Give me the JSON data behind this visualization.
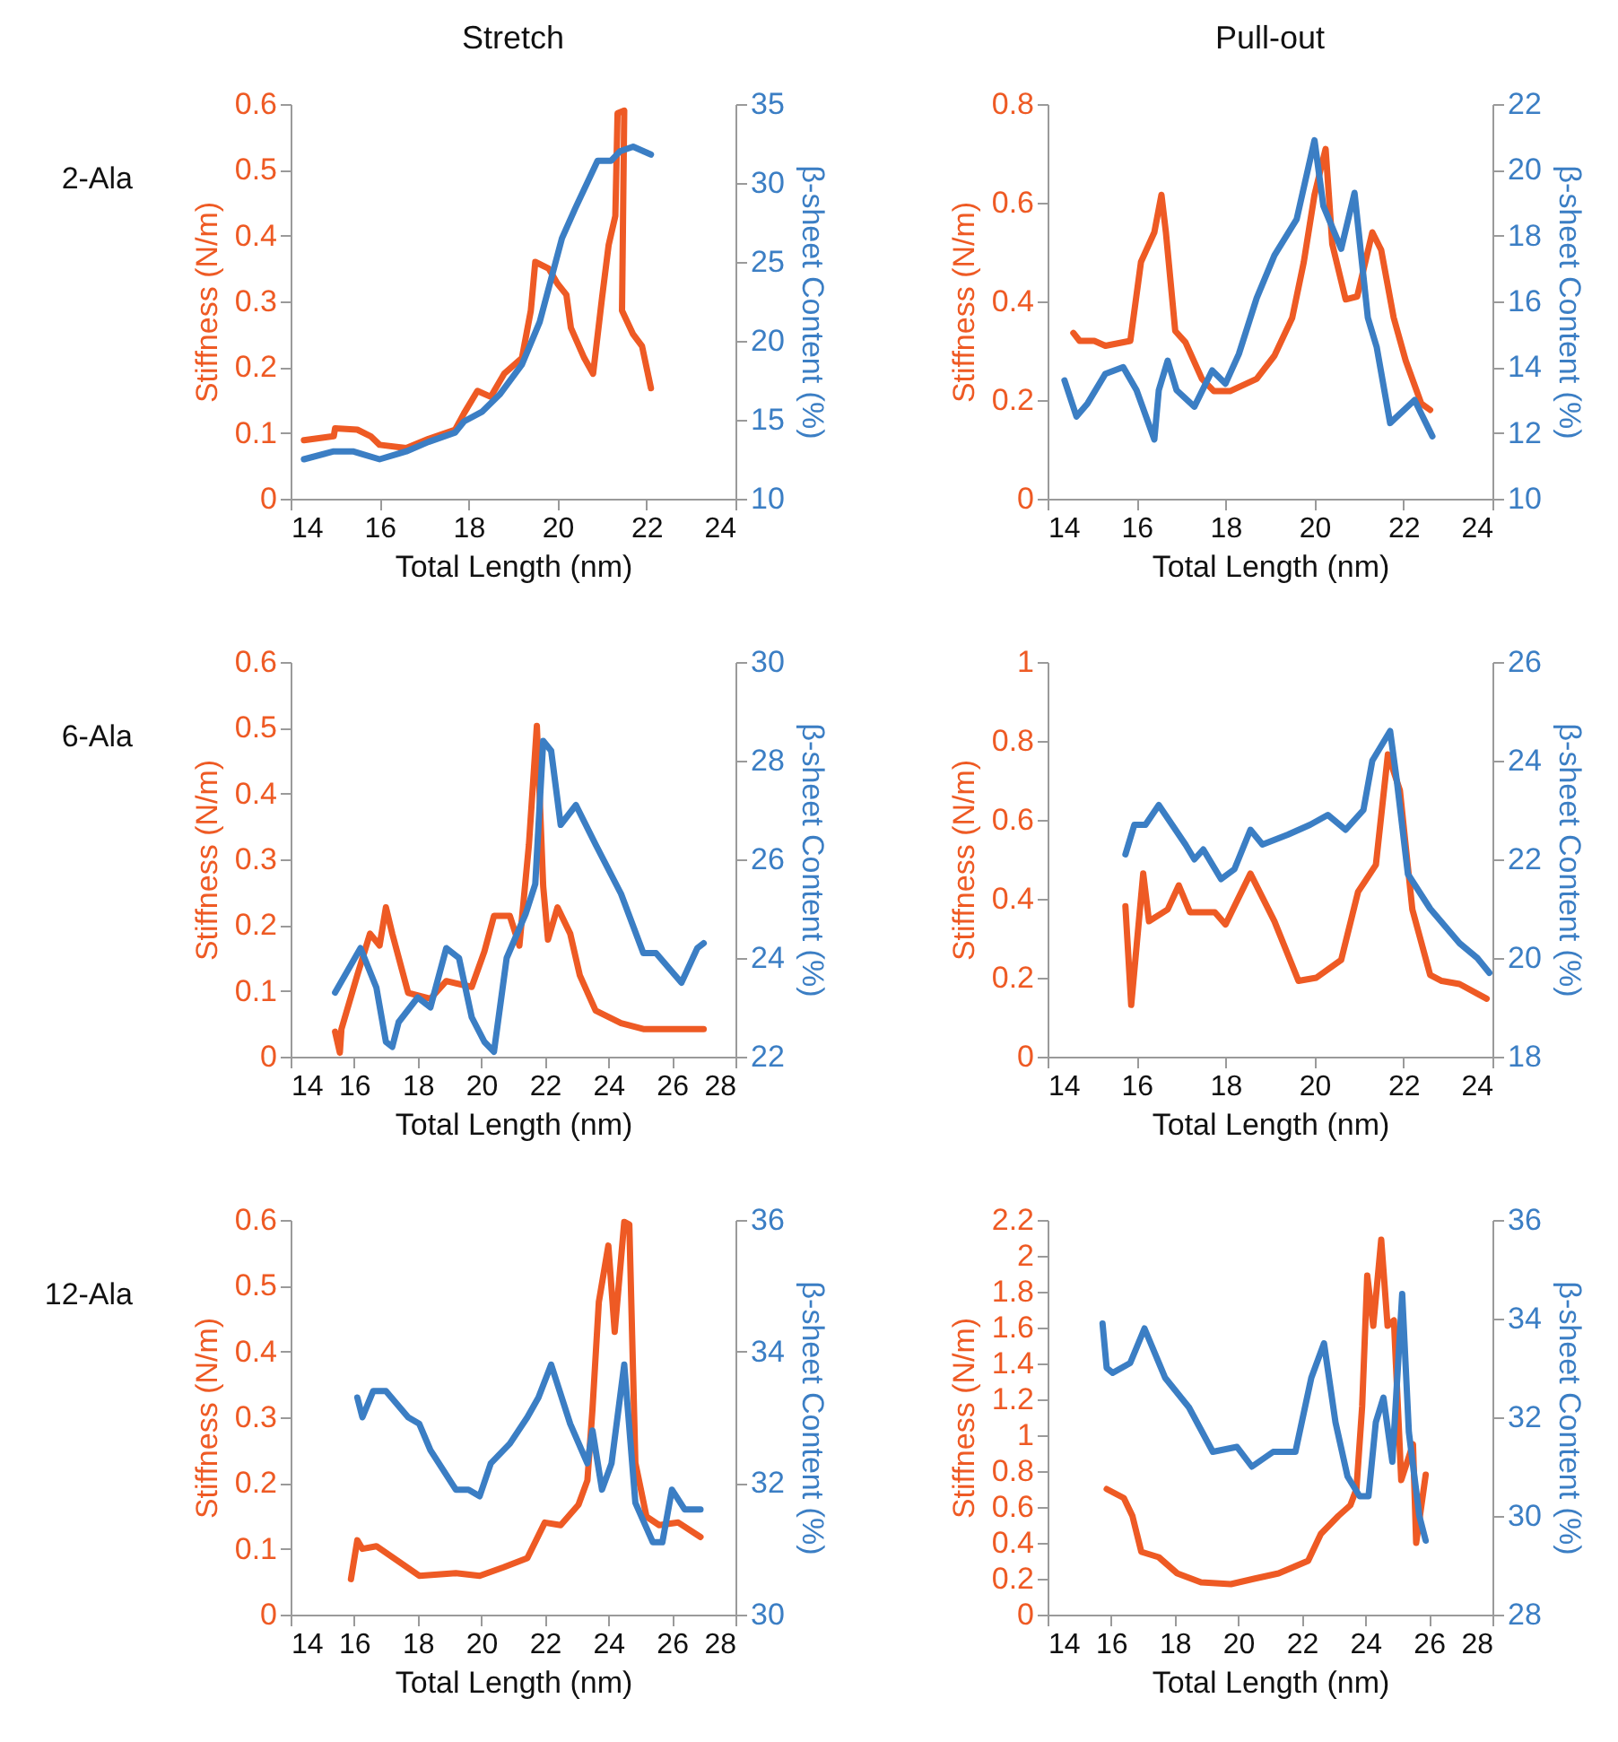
{
  "chart_data": [
    {
      "type": "line",
      "title": "Stretch",
      "annotations": [
        "2-Ala"
      ],
      "xlabel": "Total Length (nm)",
      "ylabel": "Stiffness (N/m)",
      "y2label": "β-sheet Content (%)",
      "xlim": [
        14,
        24
      ],
      "xticks": [
        14,
        16,
        18,
        20,
        22,
        24
      ],
      "ylim": [
        0,
        0.6
      ],
      "yticks": [
        0,
        0.1,
        0.2,
        0.3,
        0.4,
        0.5,
        0.6
      ],
      "y2lim": [
        10,
        35
      ],
      "y2ticks": [
        10,
        15,
        20,
        25,
        30,
        35
      ],
      "series": [
        {
          "color": "#ee5a24",
          "x": [
            14.3,
            14.97,
            15.0,
            15.5,
            15.8,
            16.0,
            16.6,
            17.1,
            17.7,
            17.9,
            18.2,
            18.5,
            18.8,
            19.2,
            19.4,
            19.5,
            19.8,
            20.0,
            20.2,
            20.3,
            20.6,
            20.8,
            21.0,
            21.15,
            21.3,
            21.35,
            21.5,
            21.45,
            21.7,
            21.9,
            22.1
          ],
          "values": [
            0.089,
            0.095,
            0.107,
            0.105,
            0.095,
            0.082,
            0.077,
            0.091,
            0.105,
            0.13,
            0.164,
            0.155,
            0.19,
            0.214,
            0.286,
            0.36,
            0.35,
            0.327,
            0.31,
            0.26,
            0.214,
            0.19,
            0.305,
            0.386,
            0.43,
            0.586,
            0.59,
            0.286,
            0.25,
            0.232,
            0.168
          ]
        },
        {
          "color": "#3b7ec4",
          "axis": "y2",
          "x": [
            14.3,
            14.97,
            15.4,
            16.0,
            16.6,
            17.1,
            17.7,
            17.9,
            18.3,
            18.7,
            19.2,
            19.6,
            20.1,
            20.4,
            20.9,
            21.2,
            21.4,
            21.7,
            22.1
          ],
          "values": [
            12.5,
            13.0,
            13.0,
            12.5,
            13.0,
            13.6,
            14.2,
            14.9,
            15.5,
            16.6,
            18.5,
            21.2,
            26.5,
            28.4,
            31.4,
            31.4,
            32.0,
            32.3,
            31.8
          ]
        }
      ]
    },
    {
      "type": "line",
      "title": "Pull-out",
      "xlabel": "Total Length (nm)",
      "ylabel": "Stiffness (N/m)",
      "y2label": "β-sheet Content (%)",
      "xlim": [
        14,
        24
      ],
      "xticks": [
        14,
        16,
        18,
        20,
        22,
        24
      ],
      "ylim": [
        0,
        0.8
      ],
      "yticks": [
        0,
        0.2,
        0.4,
        0.6,
        0.8
      ],
      "y2lim": [
        10,
        22
      ],
      "y2ticks": [
        10,
        12,
        14,
        16,
        18,
        20,
        22
      ],
      "series": [
        {
          "color": "#ee5a24",
          "x": [
            14.58,
            14.72,
            15.05,
            15.3,
            15.86,
            16.1,
            16.4,
            16.56,
            16.66,
            16.87,
            17.1,
            17.47,
            17.74,
            18.1,
            18.7,
            19.1,
            19.5,
            19.76,
            20.0,
            20.25,
            20.4,
            20.7,
            20.96,
            21.3,
            21.5,
            21.78,
            22.05,
            22.4,
            22.6
          ],
          "values": [
            0.336,
            0.32,
            0.32,
            0.31,
            0.32,
            0.48,
            0.54,
            0.616,
            0.54,
            0.34,
            0.317,
            0.243,
            0.218,
            0.218,
            0.243,
            0.29,
            0.367,
            0.48,
            0.616,
            0.709,
            0.516,
            0.404,
            0.41,
            0.54,
            0.504,
            0.367,
            0.28,
            0.193,
            0.18
          ]
        },
        {
          "color": "#3b7ec4",
          "axis": "y2",
          "x": [
            14.38,
            14.65,
            14.9,
            15.3,
            15.7,
            16.0,
            16.4,
            16.5,
            16.7,
            16.9,
            17.3,
            17.7,
            18.0,
            18.3,
            18.7,
            19.1,
            19.6,
            20.0,
            20.2,
            20.6,
            20.9,
            21.2,
            21.4,
            21.7,
            22.25,
            22.65
          ],
          "values": [
            13.6,
            12.5,
            12.9,
            13.8,
            14.0,
            13.3,
            11.8,
            13.3,
            14.2,
            13.3,
            12.8,
            13.9,
            13.5,
            14.4,
            16.1,
            17.4,
            18.5,
            20.9,
            18.9,
            17.6,
            19.3,
            15.5,
            14.6,
            12.3,
            13.0,
            11.9
          ]
        }
      ]
    },
    {
      "type": "line",
      "annotations": [
        "6-Ala"
      ],
      "xlabel": "Total Length (nm)",
      "ylabel": "Stiffness (N/m)",
      "y2label": "β-sheet Content (%)",
      "xlim": [
        14,
        28
      ],
      "xticks": [
        14,
        16,
        18,
        20,
        22,
        24,
        26,
        28
      ],
      "ylim": [
        0,
        0.6
      ],
      "yticks": [
        0,
        0.1,
        0.2,
        0.3,
        0.4,
        0.5,
        0.6
      ],
      "y2lim": [
        22,
        30
      ],
      "y2ticks": [
        22,
        24,
        26,
        28,
        30
      ],
      "series": [
        {
          "color": "#ee5a24",
          "x": [
            15.4,
            15.55,
            15.6,
            16.1,
            16.5,
            16.8,
            17.0,
            17.2,
            17.7,
            18.4,
            18.9,
            19.7,
            20.1,
            20.4,
            20.9,
            21.2,
            21.5,
            21.75,
            21.95,
            22.1,
            22.4,
            22.8,
            23.1,
            23.6,
            24.4,
            25.1,
            27.0
          ],
          "values": [
            0.038,
            0.006,
            0.042,
            0.124,
            0.187,
            0.169,
            0.227,
            0.187,
            0.097,
            0.088,
            0.115,
            0.106,
            0.16,
            0.214,
            0.214,
            0.169,
            0.322,
            0.503,
            0.259,
            0.178,
            0.227,
            0.187,
            0.124,
            0.07,
            0.051,
            0.042,
            0.042
          ]
        },
        {
          "color": "#3b7ec4",
          "axis": "y2",
          "x": [
            15.4,
            16.2,
            16.7,
            17.0,
            17.2,
            17.4,
            18.0,
            18.4,
            18.9,
            19.3,
            19.7,
            20.1,
            20.4,
            20.8,
            21.4,
            21.7,
            21.95,
            22.2,
            22.5,
            22.98,
            23.6,
            24.4,
            25.1,
            25.5,
            26.3,
            26.8,
            27.0
          ],
          "values": [
            23.3,
            24.2,
            23.4,
            22.3,
            22.2,
            22.7,
            23.2,
            23.0,
            24.2,
            24.0,
            22.8,
            22.3,
            22.1,
            24.0,
            24.9,
            25.5,
            28.4,
            28.2,
            26.7,
            27.1,
            26.3,
            25.3,
            24.1,
            24.1,
            23.5,
            24.2,
            24.3
          ]
        }
      ]
    },
    {
      "type": "line",
      "xlabel": "Total Length (nm)",
      "ylabel": "Stiffness (N/m)",
      "y2label": "β-sheet Content (%)",
      "xlim": [
        14,
        24
      ],
      "xticks": [
        14,
        16,
        18,
        20,
        22,
        24
      ],
      "ylim": [
        0,
        1
      ],
      "yticks": [
        0,
        0.2,
        0.4,
        0.6,
        0.8,
        1
      ],
      "y2lim": [
        18,
        26
      ],
      "y2ticks": [
        18,
        20,
        22,
        24,
        26
      ],
      "series": [
        {
          "color": "#ee5a24",
          "x": [
            15.75,
            15.88,
            16.15,
            16.28,
            16.7,
            16.95,
            17.2,
            17.76,
            18.0,
            18.56,
            19.1,
            19.64,
            20.04,
            20.6,
            20.98,
            21.38,
            21.65,
            21.92,
            22.2,
            22.6,
            22.86,
            23.26,
            23.87
          ],
          "values": [
            0.381,
            0.131,
            0.464,
            0.343,
            0.373,
            0.434,
            0.366,
            0.366,
            0.335,
            0.464,
            0.343,
            0.192,
            0.2,
            0.245,
            0.418,
            0.486,
            0.766,
            0.675,
            0.373,
            0.207,
            0.192,
            0.184,
            0.147
          ]
        },
        {
          "color": "#3b7ec4",
          "axis": "y2",
          "x": [
            15.75,
            15.95,
            16.2,
            16.5,
            16.8,
            17.1,
            17.3,
            17.5,
            17.9,
            18.2,
            18.56,
            18.83,
            19.4,
            19.9,
            20.3,
            20.7,
            21.1,
            21.3,
            21.7,
            21.85,
            22.1,
            22.6,
            23.26,
            23.66,
            23.93
          ],
          "values": [
            22.1,
            22.7,
            22.7,
            23.1,
            22.7,
            22.3,
            22.0,
            22.2,
            21.6,
            21.8,
            22.6,
            22.3,
            22.5,
            22.7,
            22.9,
            22.6,
            23.0,
            24.0,
            24.6,
            23.6,
            21.7,
            21.0,
            20.3,
            20.0,
            19.7
          ]
        }
      ]
    },
    {
      "type": "line",
      "annotations": [
        "12-Ala"
      ],
      "xlabel": "Total Length (nm)",
      "ylabel": "Stiffness (N/m)",
      "y2label": "β-sheet Content (%)",
      "xlim": [
        14,
        28
      ],
      "xticks": [
        14,
        16,
        18,
        20,
        22,
        24,
        26,
        28
      ],
      "ylim": [
        0,
        0.6
      ],
      "yticks": [
        0,
        0.1,
        0.2,
        0.3,
        0.4,
        0.5,
        0.6
      ],
      "y2lim": [
        30,
        36
      ],
      "y2ticks": [
        30,
        32,
        34,
        36
      ],
      "series": [
        {
          "color": "#ee5a24",
          "x": [
            15.9,
            16.1,
            16.26,
            16.7,
            18.05,
            19.2,
            19.95,
            20.7,
            21.45,
            22.0,
            22.5,
            23.06,
            23.34,
            23.5,
            23.7,
            24.0,
            24.2,
            24.5,
            24.66,
            24.85,
            25.2,
            25.6,
            26.2,
            26.9
          ],
          "values": [
            0.054,
            0.113,
            0.1,
            0.104,
            0.059,
            0.063,
            0.059,
            0.072,
            0.086,
            0.14,
            0.136,
            0.167,
            0.204,
            0.312,
            0.475,
            0.561,
            0.43,
            0.597,
            0.593,
            0.231,
            0.149,
            0.136,
            0.14,
            0.118
          ]
        },
        {
          "color": "#3b7ec4",
          "axis": "y2",
          "x": [
            16.1,
            16.26,
            16.6,
            17.0,
            17.7,
            18.05,
            18.4,
            18.8,
            19.2,
            19.6,
            19.95,
            20.3,
            20.9,
            21.45,
            21.8,
            22.2,
            22.8,
            23.34,
            23.5,
            23.8,
            24.1,
            24.5,
            24.85,
            25.4,
            25.7,
            26.0,
            26.4,
            26.9
          ],
          "values": [
            33.3,
            33.0,
            33.4,
            33.4,
            33.0,
            32.9,
            32.5,
            32.2,
            31.9,
            31.9,
            31.8,
            32.3,
            32.6,
            33.0,
            33.3,
            33.8,
            32.9,
            32.3,
            32.8,
            31.9,
            32.3,
            33.8,
            31.7,
            31.1,
            31.1,
            31.9,
            31.6,
            31.6
          ]
        }
      ]
    },
    {
      "type": "line",
      "xlabel": "Total Length (nm)",
      "ylabel": "Stiffness (N/m)",
      "y2label": "β-sheet Content (%)",
      "xlim": [
        14,
        28
      ],
      "xticks": [
        14,
        16,
        18,
        20,
        22,
        24,
        26,
        28
      ],
      "ylim": [
        0,
        2.2
      ],
      "yticks": [
        0,
        0.2,
        0.4,
        0.6,
        0.8,
        1,
        1.2,
        1.4,
        1.6,
        1.8,
        2,
        2.2
      ],
      "y2lim": [
        28,
        36
      ],
      "y2ticks": [
        28,
        30,
        32,
        34,
        36
      ],
      "series": [
        {
          "color": "#ee5a24",
          "x": [
            15.86,
            16.4,
            16.67,
            16.95,
            17.5,
            18.08,
            18.83,
            19.77,
            20.5,
            21.27,
            22.2,
            22.6,
            23.15,
            23.53,
            23.72,
            23.9,
            24.06,
            24.25,
            24.5,
            24.7,
            24.9,
            25.13,
            25.5,
            25.6,
            25.9
          ],
          "values": [
            0.7,
            0.65,
            0.55,
            0.35,
            0.32,
            0.23,
            0.18,
            0.17,
            0.2,
            0.23,
            0.3,
            0.45,
            0.55,
            0.61,
            0.7,
            1.16,
            1.89,
            1.61,
            2.09,
            1.61,
            1.64,
            0.75,
            0.95,
            0.4,
            0.78
          ]
        },
        {
          "color": "#3b7ec4",
          "axis": "y2",
          "x": [
            15.73,
            15.86,
            16.05,
            16.6,
            17.05,
            17.7,
            18.45,
            19.2,
            19.96,
            20.43,
            21.1,
            21.8,
            22.3,
            22.7,
            23.06,
            23.44,
            23.82,
            24.1,
            24.33,
            24.57,
            24.85,
            25.16,
            25.37,
            25.7,
            25.9
          ],
          "values": [
            33.9,
            33.0,
            32.9,
            33.1,
            33.8,
            32.8,
            32.2,
            31.3,
            31.4,
            31.0,
            31.3,
            31.3,
            32.8,
            33.5,
            31.9,
            30.8,
            30.4,
            30.4,
            31.9,
            32.4,
            31.1,
            34.5,
            31.7,
            30.0,
            29.5
          ]
        }
      ]
    }
  ]
}
